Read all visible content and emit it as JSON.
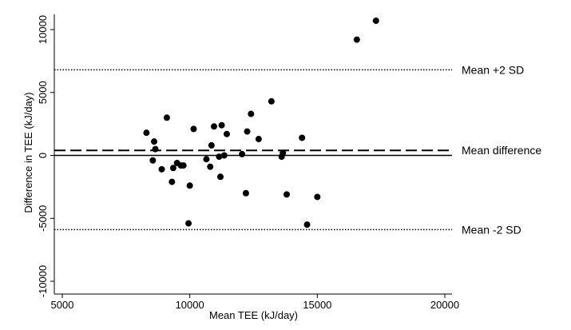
{
  "chart_data": {
    "type": "scatter",
    "title": "",
    "xlabel": "Mean TEE (kJ/day)",
    "ylabel": "Difference in TEE (kJ/day)",
    "xlim": [
      5000,
      20000
    ],
    "ylim": [
      -10000,
      10000
    ],
    "xticks": [
      5000,
      10000,
      15000,
      20000
    ],
    "yticks": [
      -10000,
      -5000,
      0,
      5000,
      10000
    ],
    "grid": false,
    "series": [
      {
        "points": [
          [
            8300,
            1800
          ],
          [
            8600,
            1100
          ],
          [
            8650,
            500
          ],
          [
            8550,
            -400
          ],
          [
            8900,
            -1100
          ],
          [
            9100,
            3000
          ],
          [
            9300,
            -2100
          ],
          [
            9350,
            -1000
          ],
          [
            9500,
            -600
          ],
          [
            9650,
            -800
          ],
          [
            9750,
            -800
          ],
          [
            10000,
            -2400
          ],
          [
            9950,
            -5400
          ],
          [
            10150,
            2100
          ],
          [
            10650,
            -300
          ],
          [
            10800,
            -900
          ],
          [
            10850,
            800
          ],
          [
            10950,
            2300
          ],
          [
            11150,
            -100
          ],
          [
            11200,
            -1700
          ],
          [
            11250,
            2400
          ],
          [
            11350,
            0
          ],
          [
            11450,
            1700
          ],
          [
            12050,
            100
          ],
          [
            12200,
            -3000
          ],
          [
            12250,
            1900
          ],
          [
            12400,
            3300
          ],
          [
            12700,
            1300
          ],
          [
            13200,
            4300
          ],
          [
            13600,
            -100
          ],
          [
            13650,
            200
          ],
          [
            13800,
            -3100
          ],
          [
            14400,
            1400
          ],
          [
            14600,
            -5500
          ],
          [
            15000,
            -3300
          ],
          [
            16550,
            9200
          ],
          [
            17300,
            10700
          ]
        ]
      }
    ],
    "reference_lines": [
      {
        "label": "Mean +2 SD",
        "value": 6800,
        "style": "dotted"
      },
      {
        "label": "Mean difference",
        "value": 400,
        "style": "dashed"
      },
      {
        "label": "",
        "value": 0,
        "style": "solid"
      },
      {
        "label": "Mean -2 SD",
        "value": -5900,
        "style": "dotted"
      }
    ]
  }
}
